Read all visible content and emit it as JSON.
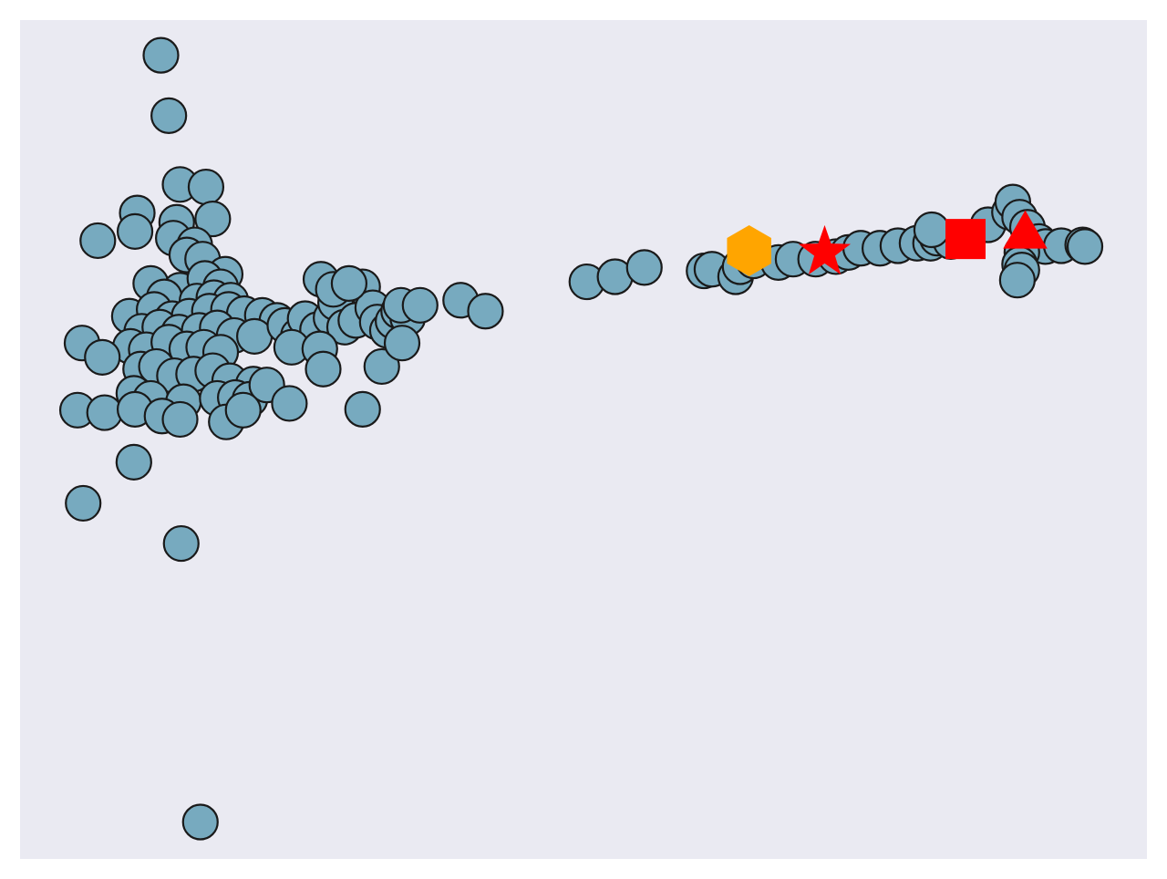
{
  "chart_data": {
    "type": "scatter",
    "title": "",
    "xlabel": "",
    "ylabel": "",
    "xlim": [
      0,
      100
    ],
    "ylim": [
      0,
      100
    ],
    "grid": false,
    "background": "#eaeaf2",
    "series": [
      {
        "marker": "circle",
        "color": "#77aabf",
        "edge": "#1a1a1a",
        "points": [
          [
            12.5,
            95.8
          ],
          [
            13.2,
            88.6
          ],
          [
            14.2,
            80.4
          ],
          [
            16.5,
            80.1
          ],
          [
            10.4,
            77.0
          ],
          [
            13.9,
            75.9
          ],
          [
            17.1,
            76.3
          ],
          [
            6.9,
            73.7
          ],
          [
            10.2,
            74.8
          ],
          [
            13.6,
            74.0
          ],
          [
            15.5,
            73.2
          ],
          [
            14.8,
            72.0
          ],
          [
            16.2,
            71.5
          ],
          [
            18.2,
            69.7
          ],
          [
            11.6,
            68.6
          ],
          [
            14.2,
            67.8
          ],
          [
            16.4,
            69.2
          ],
          [
            17.8,
            68.2
          ],
          [
            12.8,
            67.0
          ],
          [
            15.7,
            66.5
          ],
          [
            17.2,
            66.9
          ],
          [
            18.7,
            66.6
          ],
          [
            9.7,
            64.7
          ],
          [
            11.9,
            65.5
          ],
          [
            13.5,
            64.4
          ],
          [
            15.0,
            64.7
          ],
          [
            16.8,
            65.3
          ],
          [
            18.5,
            65.5
          ],
          [
            19.9,
            65.0
          ],
          [
            21.5,
            64.8
          ],
          [
            22.8,
            64.2
          ],
          [
            10.8,
            62.9
          ],
          [
            12.4,
            63.4
          ],
          [
            14.1,
            62.8
          ],
          [
            15.9,
            63.0
          ],
          [
            17.5,
            63.3
          ],
          [
            19.0,
            62.4
          ],
          [
            20.8,
            62.3
          ],
          [
            5.5,
            61.5
          ],
          [
            9.8,
            61.1
          ],
          [
            11.2,
            60.7
          ],
          [
            13.2,
            61.6
          ],
          [
            14.8,
            60.8
          ],
          [
            16.3,
            61.0
          ],
          [
            17.8,
            60.4
          ],
          [
            10.7,
            58.4
          ],
          [
            12.1,
            58.7
          ],
          [
            13.7,
            57.6
          ],
          [
            15.4,
            57.8
          ],
          [
            17.1,
            58.2
          ],
          [
            18.6,
            57.0
          ],
          [
            20.7,
            56.6
          ],
          [
            23.5,
            63.6
          ],
          [
            24.7,
            62.4
          ],
          [
            25.3,
            64.4
          ],
          [
            26.4,
            63.1
          ],
          [
            27.6,
            64.5
          ],
          [
            28.0,
            66.3
          ],
          [
            28.8,
            63.4
          ],
          [
            29.8,
            64.2
          ],
          [
            30.4,
            68.2
          ],
          [
            31.3,
            65.7
          ],
          [
            31.7,
            64.0
          ],
          [
            32.6,
            63.0
          ],
          [
            33.1,
            64.1
          ],
          [
            33.6,
            65.3
          ],
          [
            34.4,
            64.5
          ],
          [
            33.8,
            66.0
          ],
          [
            24.1,
            61.0
          ],
          [
            26.6,
            60.8
          ],
          [
            26.9,
            58.4
          ],
          [
            32.1,
            58.7
          ],
          [
            33.9,
            61.5
          ],
          [
            35.5,
            66.0
          ],
          [
            39.1,
            66.6
          ],
          [
            41.3,
            65.3
          ],
          [
            26.7,
            69.1
          ],
          [
            27.8,
            67.9
          ],
          [
            29.2,
            68.6
          ],
          [
            10.1,
            55.5
          ],
          [
            11.6,
            54.9
          ],
          [
            14.5,
            54.5
          ],
          [
            17.5,
            54.9
          ],
          [
            19.1,
            55.0
          ],
          [
            20.4,
            54.8
          ],
          [
            21.9,
            56.5
          ],
          [
            7.3,
            59.8
          ],
          [
            5.1,
            53.5
          ],
          [
            7.5,
            53.2
          ],
          [
            10.2,
            53.6
          ],
          [
            12.6,
            52.8
          ],
          [
            14.2,
            52.4
          ],
          [
            18.3,
            52.1
          ],
          [
            19.8,
            53.5
          ],
          [
            23.9,
            54.3
          ],
          [
            30.4,
            53.6
          ],
          [
            10.1,
            47.3
          ],
          [
            5.6,
            42.4
          ],
          [
            14.3,
            37.6
          ],
          [
            16.0,
            4.4
          ],
          [
            50.3,
            68.8
          ],
          [
            52.8,
            69.4
          ],
          [
            55.4,
            70.5
          ],
          [
            60.7,
            70.1
          ],
          [
            61.4,
            70.3
          ],
          [
            63.5,
            69.4
          ],
          [
            63.9,
            70.6
          ],
          [
            65.1,
            71.3
          ],
          [
            67.3,
            71.1
          ],
          [
            68.6,
            71.5
          ],
          [
            70.6,
            71.5
          ],
          [
            72.4,
            71.8
          ],
          [
            73.5,
            72.3
          ],
          [
            74.6,
            72.8
          ],
          [
            76.3,
            72.8
          ],
          [
            77.9,
            73.1
          ],
          [
            79.6,
            73.4
          ],
          [
            80.8,
            73.4
          ],
          [
            81.4,
            74.0
          ],
          [
            82.6,
            73.6
          ],
          [
            80.9,
            75.0
          ],
          [
            85.9,
            75.6
          ],
          [
            87.8,
            77.1
          ],
          [
            88.1,
            78.3
          ],
          [
            88.7,
            76.5
          ],
          [
            89.4,
            75.3
          ],
          [
            90.4,
            73.6
          ],
          [
            91.0,
            73.0
          ],
          [
            92.4,
            73.1
          ],
          [
            94.3,
            73.2
          ],
          [
            88.9,
            72.3
          ],
          [
            88.7,
            70.9
          ],
          [
            88.9,
            70.2
          ],
          [
            88.5,
            69.0
          ],
          [
            94.5,
            73.0
          ]
        ]
      },
      {
        "marker": "hexagon",
        "color": "#ffa500",
        "points": [
          [
            64.7,
            72.5
          ]
        ]
      },
      {
        "marker": "star",
        "color": "#ff0000",
        "points": [
          [
            71.4,
            72.3
          ]
        ]
      },
      {
        "marker": "square",
        "color": "#ff0000",
        "points": [
          [
            83.9,
            73.9
          ]
        ]
      },
      {
        "marker": "triangle",
        "color": "#ff0000",
        "points": [
          [
            89.2,
            74.5
          ]
        ]
      }
    ]
  }
}
